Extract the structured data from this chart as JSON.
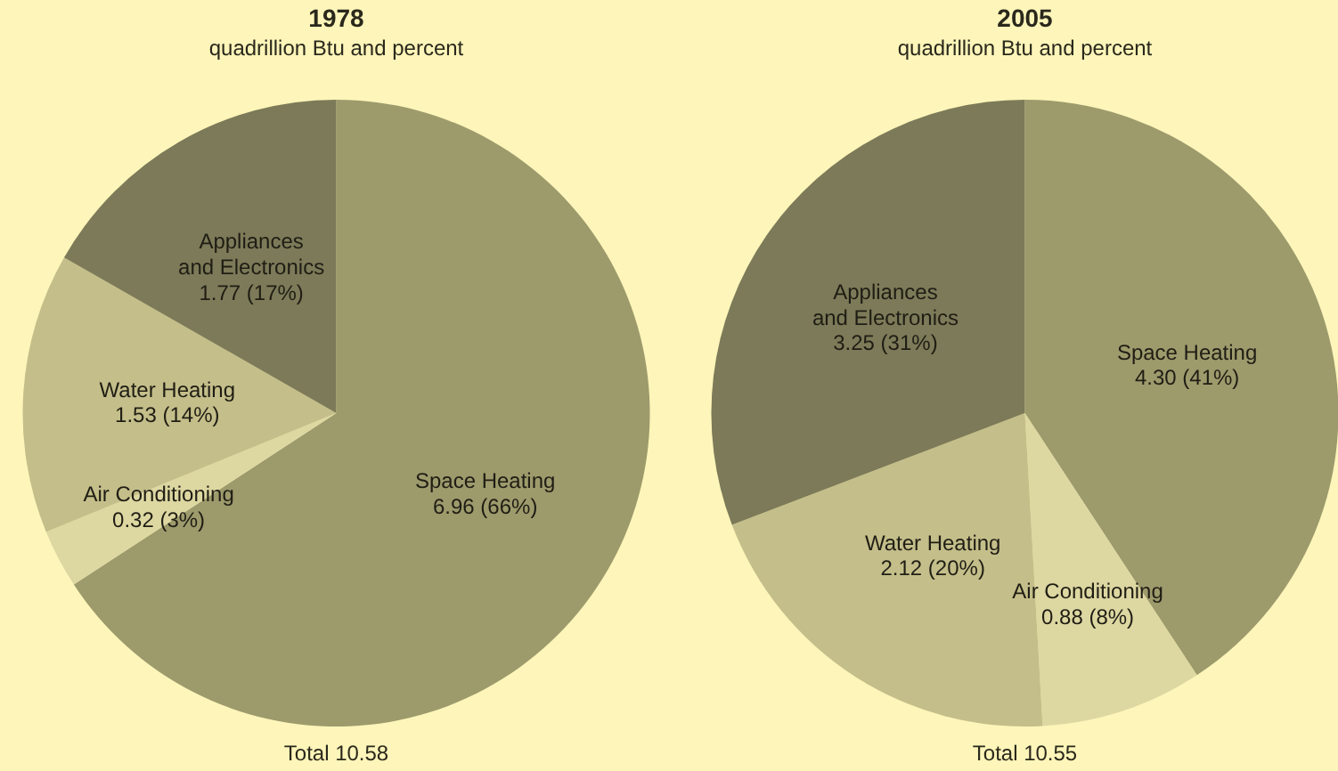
{
  "chart_data": [
    {
      "type": "pie",
      "title": "1978",
      "subtitle": "quadrillion Btu and percent",
      "categories": [
        "Space Heating",
        "Air Conditioning",
        "Water Heating",
        "Appliances and Electronics"
      ],
      "values": [
        6.96,
        0.32,
        1.53,
        1.77
      ],
      "value_labels": [
        "6.96 (66%)",
        "0.32 (3%)",
        "1.53 (14%)",
        "1.77 (17%)"
      ],
      "colors": [
        "#9d9a6c",
        "#ddd7a2",
        "#c4be8a",
        "#7c7a58"
      ],
      "annotations": [
        "Total 10.58"
      ]
    },
    {
      "type": "pie",
      "title": "2005",
      "subtitle": "quadrillion Btu and percent",
      "categories": [
        "Space Heating",
        "Air Conditioning",
        "Water Heating",
        "Appliances and Electronics"
      ],
      "values": [
        4.3,
        0.88,
        2.12,
        3.25
      ],
      "value_labels": [
        "4.30 (41%)",
        "0.88 (8%)",
        "2.12 (20%)",
        "3.25 (31%)"
      ],
      "colors": [
        "#9d9a6c",
        "#ddd7a2",
        "#c4be8a",
        "#7c7a58"
      ],
      "annotations": [
        "Total 10.55"
      ]
    }
  ]
}
